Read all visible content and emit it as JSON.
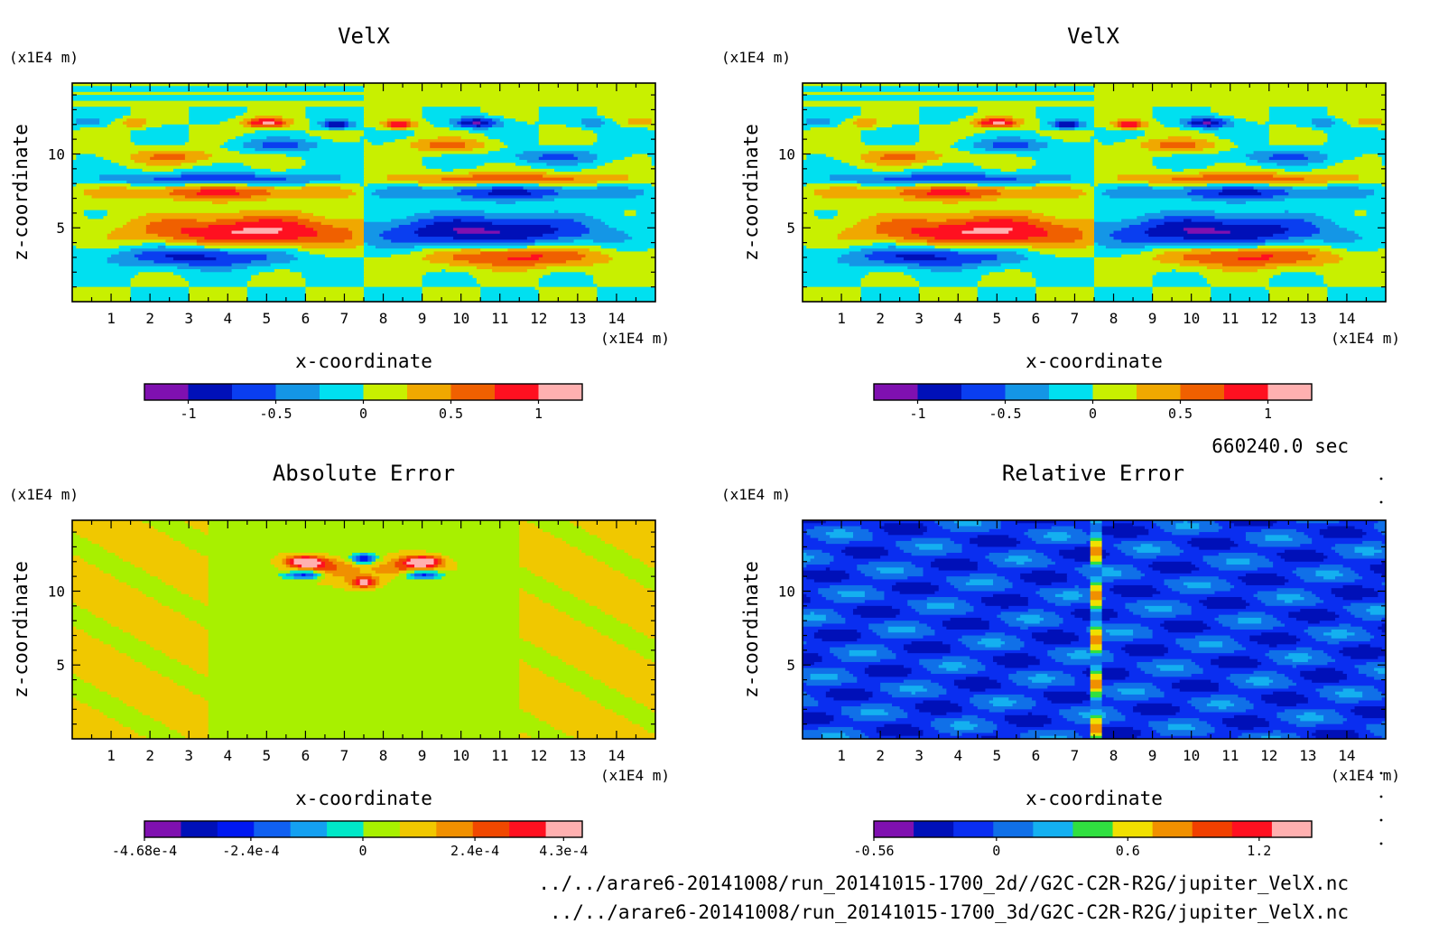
{
  "figure": {
    "time_label": "660240.0 sec",
    "files": [
      "../../arare6-20141008/run_20141015-1700_2d//G2C-C2R-R2G/jupiter_VelX.nc",
      "../../arare6-20141008/run_20141015-1700_3d/G2C-C2R-R2G/jupiter_VelX.nc"
    ]
  },
  "chart_data": [
    {
      "type": "heatmap",
      "title": "VelX",
      "xlabel": "x-coordinate",
      "ylabel": "z-coordinate",
      "x_unit": "(x1E4 m)",
      "y_unit": "(x1E4 m)",
      "xlim": [
        0,
        15
      ],
      "ylim": [
        0,
        14.8
      ],
      "x_ticks": [
        "1",
        "2",
        "3",
        "4",
        "5",
        "6",
        "7",
        "8",
        "9",
        "10",
        "11",
        "12",
        "13",
        "14"
      ],
      "y_ticks": [
        "5",
        "10"
      ],
      "colorbar": {
        "colors": [
          "#7f10b0",
          "#0010b8",
          "#0a3ef0",
          "#1496e6",
          "#00e0f0",
          "#c8f000",
          "#f0a800",
          "#f06000",
          "#ff1020",
          "#ffb0b0"
        ],
        "tick_labels": [
          "-1",
          "-0.5",
          "0",
          "0.5",
          "1"
        ],
        "tick_values": [
          -1,
          -0.5,
          0,
          0.5,
          1
        ],
        "range": [
          -1.25,
          1.25
        ]
      }
    },
    {
      "type": "heatmap",
      "title": "VelX",
      "xlabel": "x-coordinate",
      "ylabel": "z-coordinate",
      "x_unit": "(x1E4 m)",
      "y_unit": "(x1E4 m)",
      "xlim": [
        0,
        15
      ],
      "ylim": [
        0,
        14.8
      ],
      "x_ticks": [
        "1",
        "2",
        "3",
        "4",
        "5",
        "6",
        "7",
        "8",
        "9",
        "10",
        "11",
        "12",
        "13",
        "14"
      ],
      "y_ticks": [
        "5",
        "10"
      ],
      "colorbar": {
        "colors": [
          "#7f10b0",
          "#0010b8",
          "#0a3ef0",
          "#1496e6",
          "#00e0f0",
          "#c8f000",
          "#f0a800",
          "#f06000",
          "#ff1020",
          "#ffb0b0"
        ],
        "tick_labels": [
          "-1",
          "-0.5",
          "0",
          "0.5",
          "1"
        ],
        "tick_values": [
          -1,
          -0.5,
          0,
          0.5,
          1
        ],
        "range": [
          -1.25,
          1.25
        ]
      }
    },
    {
      "type": "heatmap",
      "title": "Absolute Error",
      "xlabel": "x-coordinate",
      "ylabel": "z-coordinate",
      "x_unit": "(x1E4 m)",
      "y_unit": "(x1E4 m)",
      "xlim": [
        0,
        15
      ],
      "ylim": [
        0,
        14.8
      ],
      "x_ticks": [
        "1",
        "2",
        "3",
        "4",
        "5",
        "6",
        "7",
        "8",
        "9",
        "10",
        "11",
        "12",
        "13",
        "14"
      ],
      "y_ticks": [
        "5",
        "10"
      ],
      "colorbar": {
        "colors": [
          "#7f10b0",
          "#0010b8",
          "#0018f0",
          "#1060f0",
          "#14a0f0",
          "#00e8c8",
          "#a8f000",
          "#f0c800",
          "#f09000",
          "#f04800",
          "#ff1020",
          "#ffb0b0"
        ],
        "tick_labels": [
          "-4.68e-4",
          "-2.4e-4",
          "0",
          "2.4e-4",
          "4.3e-4"
        ],
        "tick_values": [
          -0.000468,
          -0.00024,
          0,
          0.00024,
          0.00043
        ],
        "range": [
          -0.000468,
          0.00047
        ]
      }
    },
    {
      "type": "heatmap",
      "title": "Relative Error",
      "xlabel": "x-coordinate",
      "ylabel": "z-coordinate",
      "x_unit": "(x1E4 m)",
      "y_unit": "(x1E4 m)",
      "xlim": [
        0,
        15
      ],
      "ylim": [
        0,
        14.8
      ],
      "x_ticks": [
        "1",
        "2",
        "3",
        "4",
        "5",
        "6",
        "7",
        "8",
        "9",
        "10",
        "11",
        "12",
        "13",
        "14"
      ],
      "y_ticks": [
        "5",
        "10"
      ],
      "colorbar": {
        "colors": [
          "#7f10b0",
          "#0010b8",
          "#0a2ef0",
          "#1070e8",
          "#14b0f0",
          "#30e040",
          "#f0e000",
          "#f09000",
          "#f04000",
          "#ff1020",
          "#ffb0b0"
        ],
        "tick_labels": [
          "-0.56",
          "0",
          "0.6",
          "1.2"
        ],
        "tick_values": [
          -0.56,
          0,
          0.6,
          1.2
        ],
        "range": [
          -0.56,
          1.44
        ]
      }
    }
  ]
}
